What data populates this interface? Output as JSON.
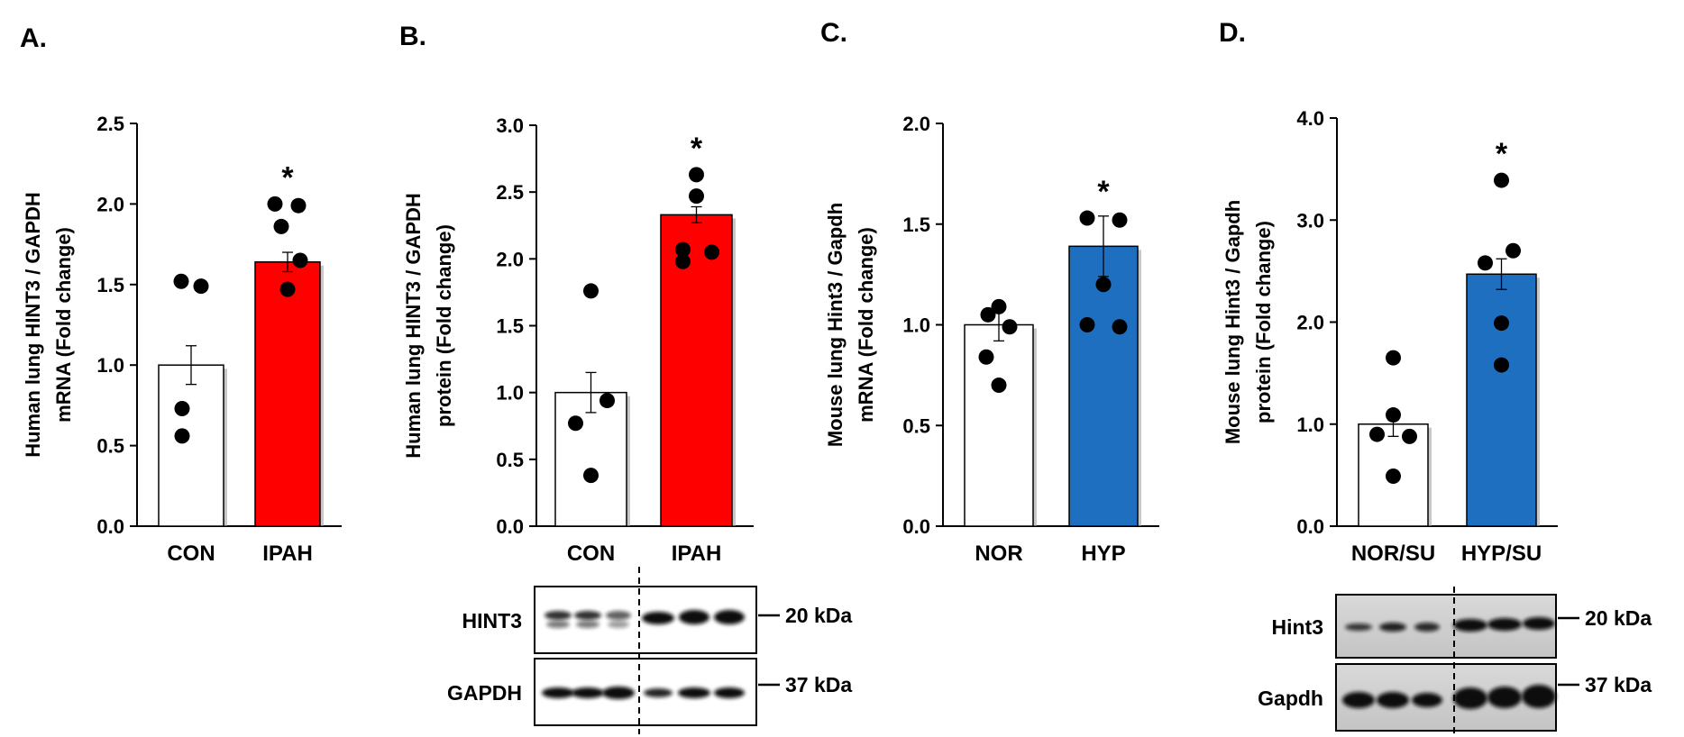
{
  "colors": {
    "control": "#ffffff",
    "ipah": "#ff0000",
    "hypoxia": "#1f6fc1",
    "axis": "#000000"
  },
  "chart_data": [
    {
      "panel": "A.",
      "type": "bar",
      "ylabel": [
        "Human lung HINT3 / GAPDH",
        "mRNA (Fold change)"
      ],
      "categories": [
        "CON",
        "IPAH"
      ],
      "values": [
        1.0,
        1.64
      ],
      "errors": [
        0.12,
        0.06
      ],
      "points": [
        [
          1.52,
          1.49,
          0.73,
          0.56
        ],
        [
          2.0,
          1.99,
          1.86,
          1.65,
          1.47
        ]
      ],
      "ylim": [
        0,
        2.5
      ],
      "yticks": [
        "0.0",
        "0.5",
        "1.0",
        "1.5",
        "2.0",
        "2.5"
      ],
      "significance": [
        "",
        "*"
      ],
      "bar_colors": [
        "#ffffff",
        "#ff0000"
      ]
    },
    {
      "panel": "B.",
      "type": "bar",
      "ylabel": [
        "Human lung HINT3 / GAPDH",
        "protein (Fold change)"
      ],
      "categories": [
        "CON",
        "IPAH"
      ],
      "values": [
        1.0,
        2.33
      ],
      "errors": [
        0.15,
        0.06
      ],
      "points": [
        [
          1.76,
          0.94,
          0.77,
          0.38
        ],
        [
          2.63,
          2.47,
          2.07,
          2.05,
          1.98
        ]
      ],
      "ylim": [
        0,
        3.0
      ],
      "yticks": [
        "0.0",
        "0.5",
        "1.0",
        "1.5",
        "2.0",
        "2.5",
        "3.0"
      ],
      "significance": [
        "",
        "*"
      ],
      "bar_colors": [
        "#ffffff",
        "#ff0000"
      ]
    },
    {
      "panel": "C.",
      "type": "bar",
      "ylabel": [
        "Mouse lung Hint3 / Gapdh",
        "mRNA (Fold change)"
      ],
      "categories": [
        "NOR",
        "HYP"
      ],
      "values": [
        1.0,
        1.39
      ],
      "errors": [
        0.08,
        0.15
      ],
      "points": [
        [
          1.09,
          1.05,
          0.99,
          0.84,
          0.7
        ],
        [
          1.53,
          1.52,
          1.2,
          1.0,
          0.99
        ]
      ],
      "ylim": [
        0,
        2.0
      ],
      "yticks": [
        "0.0",
        "0.5",
        "1.0",
        "1.5",
        "2.0"
      ],
      "significance": [
        "",
        "*"
      ],
      "bar_colors": [
        "#ffffff",
        "#1f6fc1"
      ]
    },
    {
      "panel": "D.",
      "type": "bar",
      "ylabel": [
        "Mouse lung Hint3 / Gapdh",
        "protein (Fold change)"
      ],
      "categories": [
        "NOR/SU",
        "HYP/SU"
      ],
      "values": [
        1.0,
        2.47
      ],
      "errors": [
        0.12,
        0.15
      ],
      "points": [
        [
          1.65,
          1.09,
          0.9,
          0.88,
          0.49
        ],
        [
          3.39,
          2.7,
          2.58,
          1.99,
          1.58
        ]
      ],
      "ylim": [
        0,
        4.0
      ],
      "yticks": [
        "0.0",
        "1.0",
        "2.0",
        "3.0",
        "4.0"
      ],
      "significance": [
        "",
        "*"
      ],
      "bar_colors": [
        "#ffffff",
        "#1f6fc1"
      ]
    }
  ],
  "blots": {
    "B": {
      "rows": [
        {
          "label": "HINT3",
          "size": "20 kDa"
        },
        {
          "label": "GAPDH",
          "size": "37 kDa"
        }
      ]
    },
    "D": {
      "rows": [
        {
          "label": "Hint3",
          "size": "20 kDa"
        },
        {
          "label": "Gapdh",
          "size": "37 kDa"
        }
      ]
    }
  }
}
